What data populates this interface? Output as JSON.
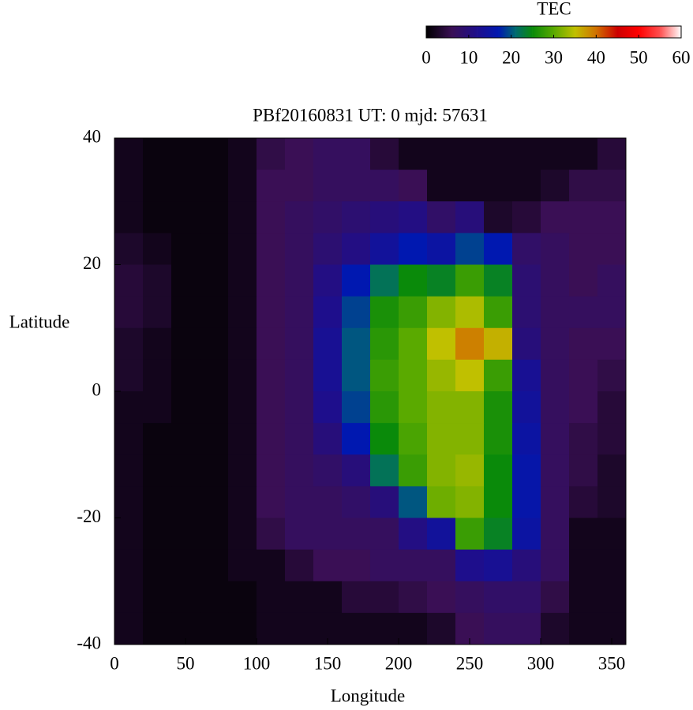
{
  "chart_data": {
    "type": "heatmap",
    "title": "PBf20160831  UT: 0  mjd: 57631",
    "xlabel": "Longitude",
    "ylabel": "Latitude",
    "colorbar_label": "TEC",
    "xlim": [
      0,
      360
    ],
    "xticks": [
      0,
      50,
      100,
      150,
      200,
      250,
      300,
      350
    ],
    "ylim": [
      -40,
      40
    ],
    "yticks": [
      -40,
      -20,
      0,
      20,
      40
    ],
    "clim": [
      0,
      60
    ],
    "cticks": [
      0,
      10,
      20,
      30,
      40,
      50,
      60
    ],
    "colorscale": [
      [
        0,
        "#000000"
      ],
      [
        6,
        "#3a0f55"
      ],
      [
        12,
        "#1e0e8c"
      ],
      [
        17,
        "#0018b0"
      ],
      [
        21,
        "#006a70"
      ],
      [
        25,
        "#0a8a0a"
      ],
      [
        30,
        "#5aaa00"
      ],
      [
        35,
        "#c0c000"
      ],
      [
        40,
        "#d07000"
      ],
      [
        45,
        "#cc0000"
      ],
      [
        50,
        "#ff0000"
      ],
      [
        55,
        "#ff5050"
      ],
      [
        60,
        "#ffffff"
      ]
    ],
    "x": [
      10,
      30,
      50,
      70,
      90,
      110,
      130,
      150,
      170,
      190,
      210,
      230,
      250,
      270,
      290,
      310,
      330,
      350
    ],
    "y": [
      37.5,
      32.5,
      27.5,
      22.5,
      17.5,
      12.5,
      7.5,
      2.5,
      -2.5,
      -7.5,
      -12.5,
      -17.5,
      -22.5,
      -27.5,
      -32.5,
      -37.5
    ],
    "z": [
      [
        2,
        1,
        1,
        1,
        2,
        5,
        6,
        7,
        7,
        4,
        2,
        2,
        2,
        2,
        2,
        2,
        2,
        4
      ],
      [
        2,
        1,
        1,
        1,
        2,
        6,
        6,
        7,
        7,
        7,
        6,
        2,
        2,
        2,
        2,
        3,
        5,
        5
      ],
      [
        2,
        1,
        1,
        1,
        2,
        6,
        7,
        8,
        9,
        10,
        11,
        8,
        10,
        3,
        4,
        6,
        6,
        6
      ],
      [
        3,
        2,
        1,
        1,
        2,
        6,
        7,
        9,
        11,
        14,
        17,
        15,
        19,
        17,
        8,
        7,
        6,
        6
      ],
      [
        4,
        3,
        1,
        1,
        2,
        6,
        7,
        11,
        17,
        22,
        25,
        24,
        28,
        24,
        9,
        7,
        6,
        7
      ],
      [
        4,
        3,
        1,
        1,
        2,
        6,
        7,
        12,
        19,
        26,
        28,
        32,
        34,
        28,
        9,
        7,
        7,
        7
      ],
      [
        3,
        2,
        1,
        1,
        2,
        6,
        7,
        13,
        20,
        27,
        30,
        35,
        39,
        36,
        10,
        7,
        6,
        6
      ],
      [
        3,
        2,
        1,
        1,
        2,
        6,
        7,
        13,
        20,
        28,
        30,
        33,
        35,
        28,
        13,
        7,
        6,
        5
      ],
      [
        2,
        2,
        1,
        1,
        2,
        6,
        7,
        12,
        19,
        27,
        30,
        32,
        32,
        26,
        14,
        7,
        6,
        4
      ],
      [
        2,
        1,
        1,
        1,
        2,
        6,
        7,
        10,
        17,
        25,
        29,
        32,
        32,
        26,
        15,
        7,
        5,
        4
      ],
      [
        2,
        1,
        1,
        1,
        2,
        6,
        7,
        8,
        10,
        22,
        28,
        32,
        33,
        25,
        16,
        7,
        5,
        3
      ],
      [
        2,
        1,
        1,
        1,
        2,
        6,
        7,
        7,
        8,
        10,
        20,
        31,
        32,
        25,
        16,
        7,
        4,
        3
      ],
      [
        2,
        1,
        1,
        1,
        2,
        5,
        7,
        7,
        7,
        7,
        11,
        14,
        28,
        24,
        15,
        7,
        2,
        2
      ],
      [
        2,
        1,
        1,
        1,
        2,
        2,
        4,
        6,
        6,
        7,
        7,
        7,
        12,
        13,
        10,
        7,
        2,
        2
      ],
      [
        2,
        1,
        1,
        1,
        1,
        2,
        2,
        2,
        4,
        4,
        5,
        6,
        7,
        8,
        8,
        5,
        2,
        2
      ],
      [
        2,
        1,
        1,
        1,
        1,
        2,
        2,
        2,
        2,
        2,
        2,
        3,
        6,
        7,
        7,
        3,
        2,
        2
      ]
    ]
  }
}
